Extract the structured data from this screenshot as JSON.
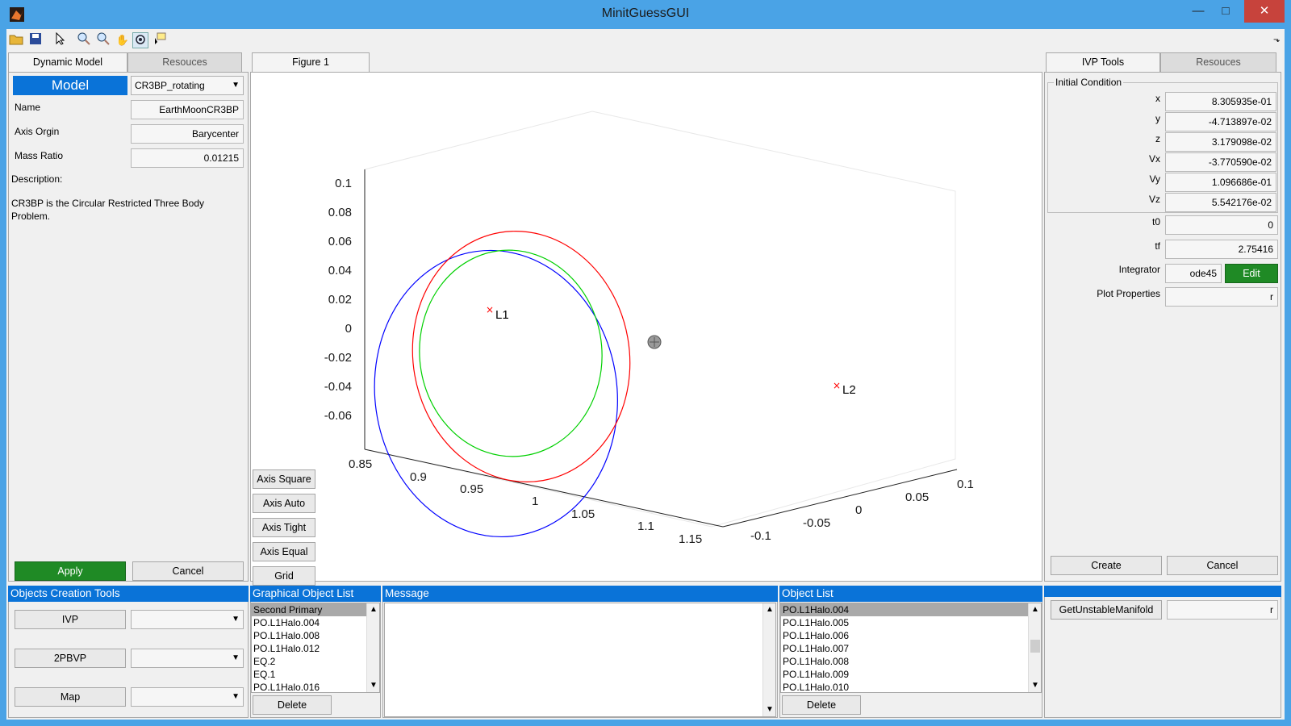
{
  "window": {
    "title": "MinitGuessGUI",
    "controls": [
      "—",
      "□",
      "✕"
    ]
  },
  "toolbar": {
    "icons": [
      "open-icon",
      "save-icon",
      "pointer-icon",
      "zoom-in-icon",
      "zoom-out-icon",
      "pan-icon",
      "rotate-3d-icon",
      "data-cursor-icon"
    ]
  },
  "left_panel": {
    "tabs": [
      "Dynamic Model",
      "Resouces"
    ],
    "model_label": "Model",
    "model_value": "CR3BP_rotating",
    "name_label": "Name",
    "name_value": "EarthMoonCR3BP",
    "axis_origin_label": "Axis Orgin",
    "axis_origin_value": "Barycenter",
    "mass_ratio_label": "Mass Ratio",
    "mass_ratio_value": "0.01215",
    "description_label": "Description:",
    "description_text": "CR3BP is the Circular Restricted Three Body Problem.",
    "apply": "Apply",
    "cancel": "Cancel"
  },
  "objects_creation": {
    "title": "Objects Creation Tools",
    "buttons": [
      "IVP",
      "2PBVP",
      "Map"
    ]
  },
  "figure": {
    "tab": "Figure 1",
    "axis_buttons": [
      "Axis Square",
      "Axis Auto",
      "Axis Tight",
      "Axis Equal",
      "Grid"
    ],
    "markers": [
      "L1",
      "L2"
    ]
  },
  "chart_data": {
    "type": "line",
    "title": "",
    "xlabel": "",
    "ylabel": "",
    "zlabel": "",
    "x_ticks": [
      "0.85",
      "0.9",
      "0.95",
      "1",
      "1.05",
      "1.1",
      "1.15"
    ],
    "y_ticks": [
      "-0.1",
      "-0.05",
      "0",
      "0.05",
      "0.1"
    ],
    "z_ticks": [
      "0.1",
      "0.08",
      "0.06",
      "0.04",
      "0.02",
      "0",
      "-0.02",
      "-0.04",
      "-0.06"
    ],
    "series": [
      {
        "color": "#0000ff",
        "description": "outer halo orbit"
      },
      {
        "color": "#ff0000",
        "description": "middle halo orbit"
      },
      {
        "color": "#00d000",
        "description": "inner halo orbit"
      }
    ],
    "points": [
      {
        "label": "L1",
        "marker": "x",
        "color": "#ff0000"
      },
      {
        "label": "L2",
        "marker": "x",
        "color": "#ff0000"
      }
    ],
    "grid": false
  },
  "graphical_list": {
    "title": "Graphical Object List",
    "items": [
      "Second Primary",
      "PO.L1Halo.004",
      "PO.L1Halo.008",
      "PO.L1Halo.012",
      "EQ.2",
      "EQ.1",
      "PO.L1Halo.016"
    ],
    "selected": 0,
    "delete": "Delete"
  },
  "message": {
    "title": "Message",
    "text": ""
  },
  "object_list": {
    "title": "Object List",
    "items": [
      "PO.L1Halo.004",
      "PO.L1Halo.005",
      "PO.L1Halo.006",
      "PO.L1Halo.007",
      "PO.L1Halo.008",
      "PO.L1Halo.009",
      "PO.L1Halo.010"
    ],
    "selected": 0,
    "delete": "Delete"
  },
  "right_panel": {
    "tabs": [
      "IVP Tools",
      "Resouces"
    ],
    "initial_condition_title": "Initial Condition",
    "fields": [
      {
        "label": "x",
        "value": "8.305935e-01"
      },
      {
        "label": "y",
        "value": "-4.713897e-02"
      },
      {
        "label": "z",
        "value": "3.179098e-02"
      },
      {
        "label": "Vx",
        "value": "-3.770590e-02"
      },
      {
        "label": "Vy",
        "value": "1.096686e-01"
      },
      {
        "label": "Vz",
        "value": "5.542176e-02"
      }
    ],
    "t0_label": "t0",
    "t0_value": "0",
    "tf_label": "tf",
    "tf_value": "2.75416",
    "integrator_label": "Integrator",
    "integrator_value": "ode45",
    "edit": "Edit",
    "plot_props_label": "Plot Properties",
    "plot_props_value": "r",
    "create": "Create",
    "cancel": "Cancel",
    "manifold_button": "GetUnstableManifold",
    "manifold_value": "r"
  },
  "colors": {
    "title_bar": "#4aa3e6",
    "accent_blue": "#0a73d8",
    "green": "#1f8a25",
    "close_red": "#c7433c"
  }
}
